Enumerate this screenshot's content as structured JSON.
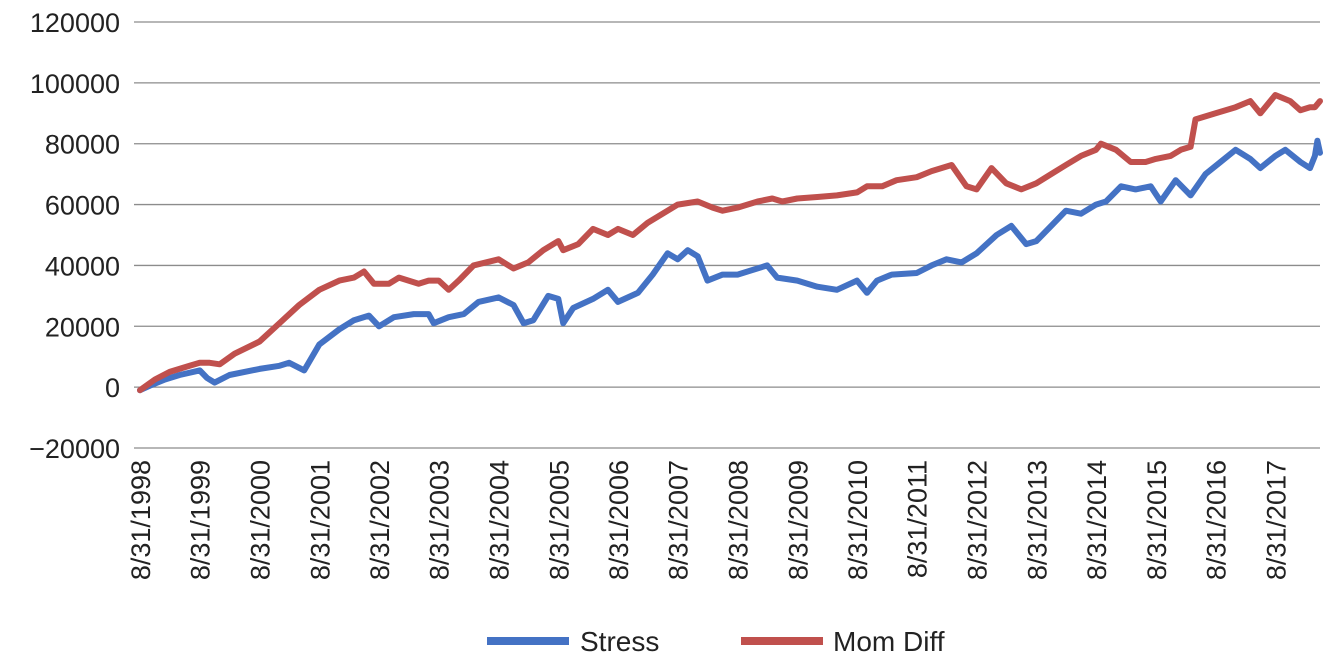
{
  "chart_data": {
    "type": "line",
    "title": "",
    "xlabel": "",
    "ylabel": "",
    "ylim": [
      -20000,
      120000
    ],
    "yticks": [
      -20000,
      0,
      20000,
      40000,
      60000,
      80000,
      100000,
      120000
    ],
    "ytick_labels": [
      "−20000",
      "0",
      "20000",
      "40000",
      "60000",
      "80000",
      "100000",
      "120000"
    ],
    "xlim": [
      "8/31/1998",
      "5/31/2018"
    ],
    "xtick_labels": [
      "8/31/1998",
      "8/31/1999",
      "8/31/2000",
      "8/31/2001",
      "8/31/2002",
      "8/31/2003",
      "8/31/2004",
      "8/31/2005",
      "8/31/2006",
      "8/31/2007",
      "8/31/2008",
      "8/31/2009",
      "8/31/2010",
      "8/31/2011",
      "8/31/2012",
      "8/31/2013",
      "8/31/2014",
      "8/31/2015",
      "8/31/2016",
      "8/31/2017"
    ],
    "grid": "horizontal",
    "legend_position": "bottom",
    "series": [
      {
        "name": "Stress",
        "color": "#4472c4",
        "points": [
          [
            "8/31/1998",
            -1000
          ],
          [
            "10/31/1998",
            500
          ],
          [
            "1/31/1999",
            2500
          ],
          [
            "4/30/1999",
            4000
          ],
          [
            "8/31/1999",
            5500
          ],
          [
            "10/15/1999",
            3000
          ],
          [
            "11/30/1999",
            1500
          ],
          [
            "2/29/2000",
            4000
          ],
          [
            "8/31/2000",
            6000
          ],
          [
            "12/31/2000",
            7000
          ],
          [
            "2/28/2001",
            8000
          ],
          [
            "5/31/2001",
            5500
          ],
          [
            "8/31/2001",
            14000
          ],
          [
            "12/31/2001",
            19000
          ],
          [
            "3/31/2002",
            22000
          ],
          [
            "6/30/2002",
            23500
          ],
          [
            "8/31/2002",
            20000
          ],
          [
            "11/30/2002",
            23000
          ],
          [
            "3/31/2003",
            24000
          ],
          [
            "6/30/2003",
            24000
          ],
          [
            "7/31/2003",
            21000
          ],
          [
            "10/31/2003",
            23000
          ],
          [
            "1/31/2004",
            24000
          ],
          [
            "4/30/2004",
            28000
          ],
          [
            "8/31/2004",
            29500
          ],
          [
            "11/30/2004",
            27000
          ],
          [
            "1/31/2005",
            21000
          ],
          [
            "3/31/2005",
            22000
          ],
          [
            "6/30/2005",
            30000
          ],
          [
            "8/31/2005",
            29000
          ],
          [
            "9/30/2005",
            21000
          ],
          [
            "11/30/2005",
            26000
          ],
          [
            "3/31/2006",
            29000
          ],
          [
            "6/30/2006",
            32000
          ],
          [
            "8/31/2006",
            28000
          ],
          [
            "12/31/2006",
            31000
          ],
          [
            "3/31/2007",
            37000
          ],
          [
            "6/30/2007",
            44000
          ],
          [
            "8/31/2007",
            42000
          ],
          [
            "10/31/2007",
            45000
          ],
          [
            "12/31/2007",
            43000
          ],
          [
            "2/29/2008",
            35000
          ],
          [
            "5/31/2008",
            37000
          ],
          [
            "8/31/2008",
            37000
          ],
          [
            "10/31/2008",
            38000
          ],
          [
            "2/28/2009",
            40000
          ],
          [
            "4/30/2009",
            36000
          ],
          [
            "8/31/2009",
            35000
          ],
          [
            "12/31/2009",
            33000
          ],
          [
            "4/30/2010",
            32000
          ],
          [
            "8/31/2010",
            35000
          ],
          [
            "10/31/2010",
            31000
          ],
          [
            "12/31/2010",
            35000
          ],
          [
            "3/31/2011",
            37000
          ],
          [
            "8/31/2011",
            37500
          ],
          [
            "11/30/2011",
            40000
          ],
          [
            "2/29/2012",
            42000
          ],
          [
            "5/31/2012",
            41000
          ],
          [
            "8/31/2012",
            44000
          ],
          [
            "12/31/2012",
            50000
          ],
          [
            "3/31/2013",
            53000
          ],
          [
            "6/30/2013",
            47000
          ],
          [
            "8/31/2013",
            48000
          ],
          [
            "11/30/2013",
            53000
          ],
          [
            "2/28/2014",
            58000
          ],
          [
            "5/31/2014",
            57000
          ],
          [
            "8/31/2014",
            60000
          ],
          [
            "10/31/2014",
            61000
          ],
          [
            "1/31/2015",
            66000
          ],
          [
            "4/30/2015",
            65000
          ],
          [
            "7/31/2015",
            66000
          ],
          [
            "9/30/2015",
            61000
          ],
          [
            "12/31/2015",
            68000
          ],
          [
            "3/31/2016",
            63000
          ],
          [
            "6/30/2016",
            70000
          ],
          [
            "9/30/2016",
            74000
          ],
          [
            "12/31/2016",
            78000
          ],
          [
            "3/31/2017",
            75000
          ],
          [
            "5/31/2017",
            72000
          ],
          [
            "8/31/2017",
            76000
          ],
          [
            "10/31/2017",
            78000
          ],
          [
            "1/31/2018",
            74000
          ],
          [
            "3/31/2018",
            72000
          ],
          [
            "4/30/2018",
            76000
          ],
          [
            "5/15/2018",
            81000
          ],
          [
            "5/31/2018",
            77000
          ]
        ]
      },
      {
        "name": "Mom Diff",
        "color": "#c0504d",
        "points": [
          [
            "8/31/1998",
            -1000
          ],
          [
            "11/30/1998",
            2500
          ],
          [
            "2/28/1999",
            5000
          ],
          [
            "6/30/1999",
            7000
          ],
          [
            "8/31/1999",
            8000
          ],
          [
            "10/31/1999",
            8000
          ],
          [
            "12/31/1999",
            7500
          ],
          [
            "3/31/2000",
            11000
          ],
          [
            "8/31/2000",
            15000
          ],
          [
            "12/31/2000",
            21000
          ],
          [
            "4/30/2001",
            27000
          ],
          [
            "8/31/2001",
            32000
          ],
          [
            "12/31/2001",
            35000
          ],
          [
            "3/31/2002",
            36000
          ],
          [
            "5/31/2002",
            38000
          ],
          [
            "7/31/2002",
            34000
          ],
          [
            "10/31/2002",
            34000
          ],
          [
            "12/31/2002",
            36000
          ],
          [
            "4/30/2003",
            34000
          ],
          [
            "6/30/2003",
            35000
          ],
          [
            "8/31/2003",
            35000
          ],
          [
            "10/31/2003",
            32000
          ],
          [
            "12/31/2003",
            35000
          ],
          [
            "3/31/2004",
            40000
          ],
          [
            "8/31/2004",
            42000
          ],
          [
            "11/30/2004",
            39000
          ],
          [
            "2/28/2005",
            41000
          ],
          [
            "5/31/2005",
            45000
          ],
          [
            "8/31/2005",
            48000
          ],
          [
            "9/30/2005",
            45000
          ],
          [
            "12/31/2005",
            47000
          ],
          [
            "3/31/2006",
            52000
          ],
          [
            "6/30/2006",
            50000
          ],
          [
            "8/31/2006",
            52000
          ],
          [
            "11/30/2006",
            50000
          ],
          [
            "2/28/2007",
            54000
          ],
          [
            "6/30/2007",
            58000
          ],
          [
            "8/31/2007",
            60000
          ],
          [
            "12/31/2007",
            61000
          ],
          [
            "3/31/2008",
            59000
          ],
          [
            "5/31/2008",
            58000
          ],
          [
            "8/31/2008",
            59000
          ],
          [
            "12/31/2008",
            61000
          ],
          [
            "3/31/2009",
            62000
          ],
          [
            "5/31/2009",
            61000
          ],
          [
            "8/31/2009",
            62000
          ],
          [
            "12/31/2009",
            62500
          ],
          [
            "4/30/2010",
            63000
          ],
          [
            "8/31/2010",
            64000
          ],
          [
            "10/31/2010",
            66000
          ],
          [
            "1/31/2011",
            66000
          ],
          [
            "4/30/2011",
            68000
          ],
          [
            "8/31/2011",
            69000
          ],
          [
            "11/30/2011",
            71000
          ],
          [
            "3/31/2012",
            73000
          ],
          [
            "6/30/2012",
            66000
          ],
          [
            "8/31/2012",
            65000
          ],
          [
            "11/30/2012",
            72000
          ],
          [
            "2/28/2013",
            67000
          ],
          [
            "5/31/2013",
            65000
          ],
          [
            "8/31/2013",
            67000
          ],
          [
            "11/30/2013",
            70000
          ],
          [
            "2/28/2014",
            73000
          ],
          [
            "5/31/2014",
            76000
          ],
          [
            "8/31/2014",
            78000
          ],
          [
            "9/30/2014",
            80000
          ],
          [
            "12/31/2014",
            78000
          ],
          [
            "3/31/2015",
            74000
          ],
          [
            "6/30/2015",
            74000
          ],
          [
            "8/31/2015",
            75000
          ],
          [
            "11/30/2015",
            76000
          ],
          [
            "1/31/2016",
            78000
          ],
          [
            "3/31/2016",
            79000
          ],
          [
            "4/30/2016",
            88000
          ],
          [
            "8/31/2016",
            90000
          ],
          [
            "12/31/2016",
            92000
          ],
          [
            "3/31/2017",
            94000
          ],
          [
            "5/31/2017",
            90000
          ],
          [
            "8/31/2017",
            96000
          ],
          [
            "11/30/2017",
            94000
          ],
          [
            "1/31/2018",
            91000
          ],
          [
            "3/31/2018",
            92000
          ],
          [
            "4/30/2018",
            92000
          ],
          [
            "5/31/2018",
            94000
          ]
        ]
      }
    ]
  }
}
